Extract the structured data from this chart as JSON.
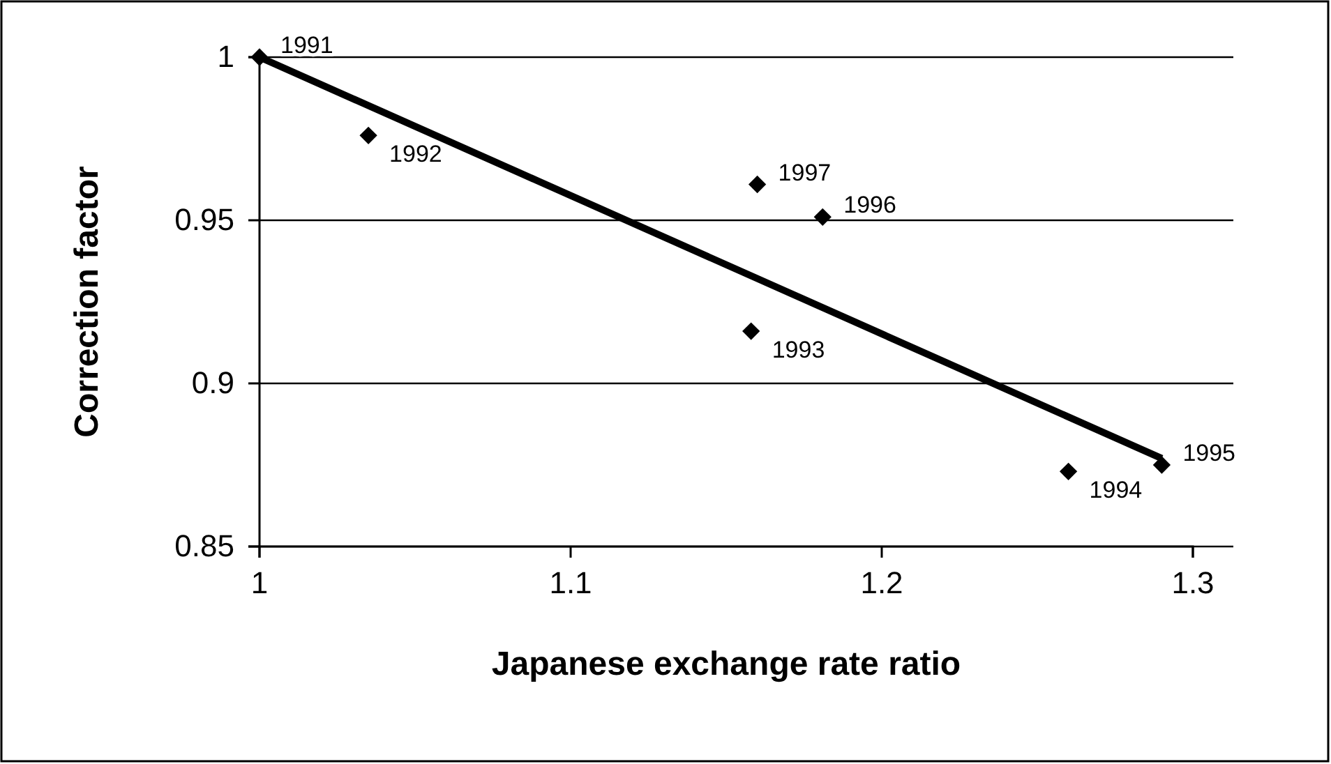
{
  "chart_data": {
    "type": "scatter",
    "xlabel": "Japanese exchange rate ratio",
    "ylabel": "Correction factor",
    "xlim": [
      1,
      1.3
    ],
    "xticks": [
      1,
      1.1,
      1.2,
      1.3
    ],
    "ylim": [
      0.85,
      1
    ],
    "yticks": [
      0.85,
      0.9,
      0.95,
      1
    ],
    "grid": "y",
    "series": [
      {
        "type": "scatter",
        "marker": "diamond",
        "color": "#000000",
        "x": [
          1,
          1.035,
          1.158,
          1.26,
          1.29,
          1.181,
          1.16
        ],
        "values": [
          1,
          0.976,
          0.916,
          0.873,
          0.875,
          0.951,
          0.961
        ]
      },
      {
        "type": "line",
        "color": "#000000",
        "x": [
          1,
          1.29
        ],
        "values": [
          1,
          0.877
        ]
      }
    ],
    "annotations": [
      {
        "text": "1991",
        "x": 1,
        "y": 1
      },
      {
        "text": "1992",
        "x": 1.035,
        "y": 0.976
      },
      {
        "text": "1993",
        "x": 1.158,
        "y": 0.916
      },
      {
        "text": "1994",
        "x": 1.26,
        "y": 0.873
      },
      {
        "text": "1995",
        "x": 1.29,
        "y": 0.875
      },
      {
        "text": "1996",
        "x": 1.181,
        "y": 0.951
      },
      {
        "text": "1997",
        "x": 1.16,
        "y": 0.961
      }
    ]
  }
}
